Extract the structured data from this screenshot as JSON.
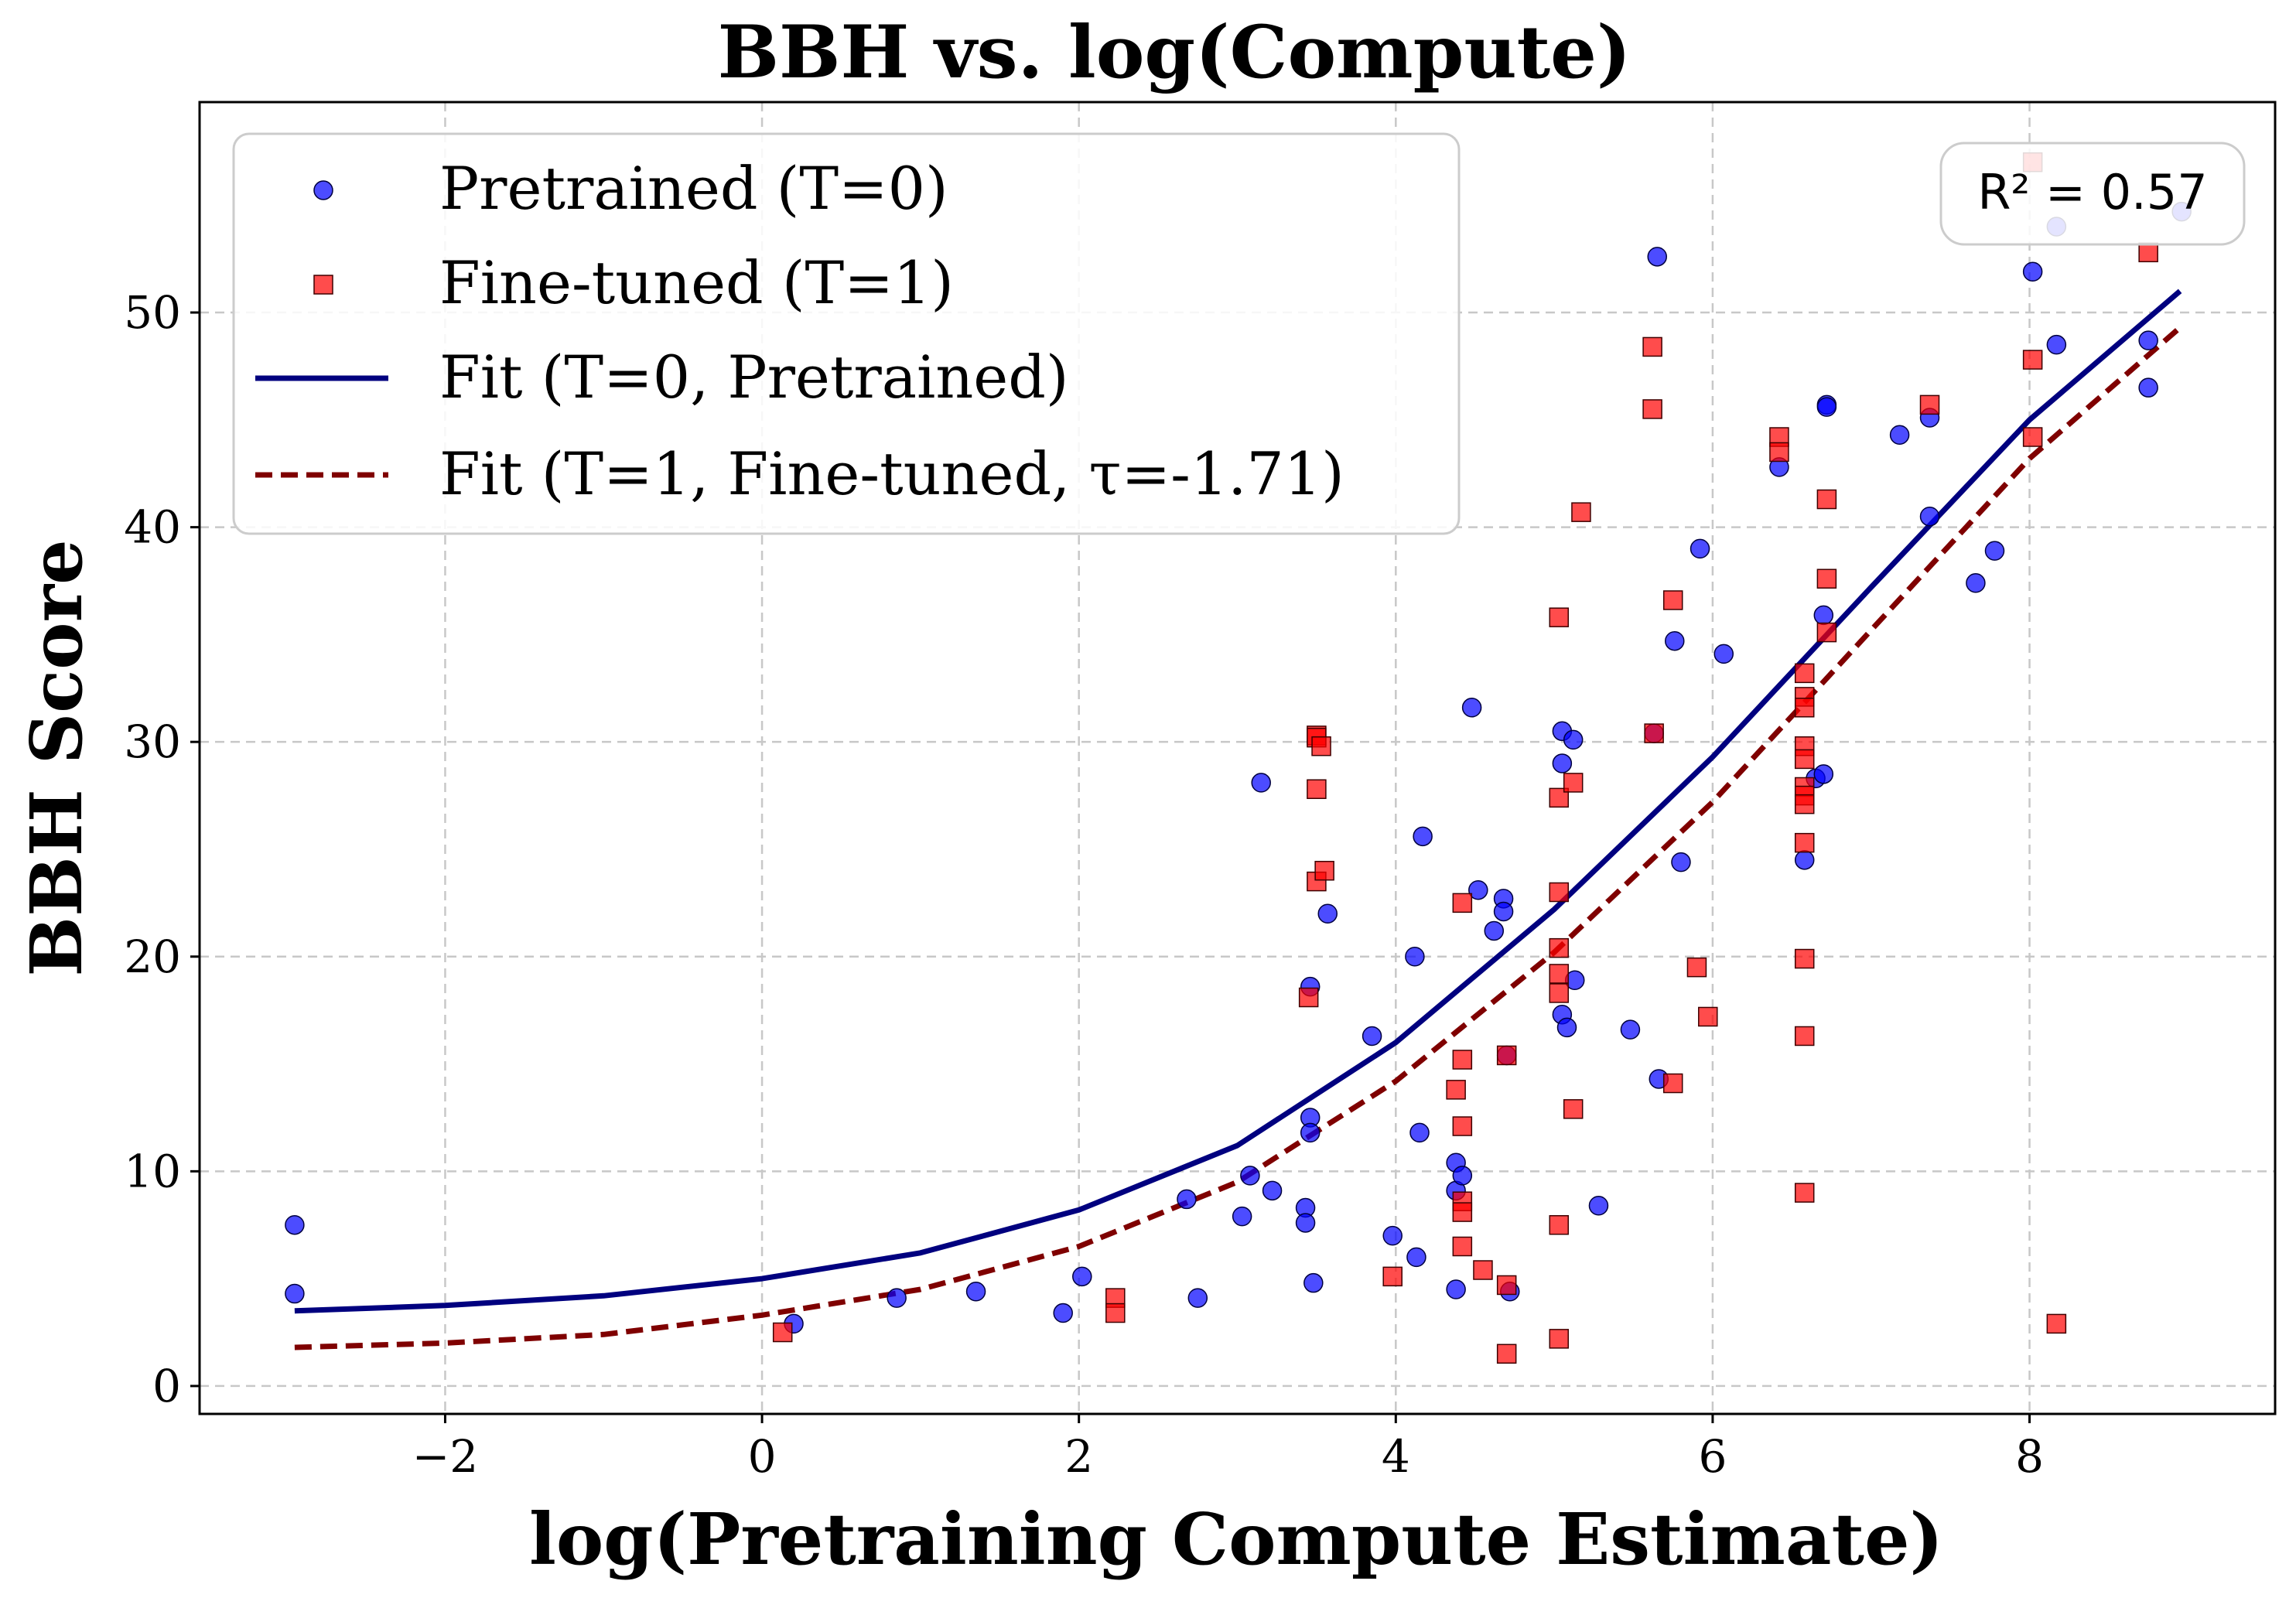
{
  "chart_data": {
    "type": "scatter",
    "title": "BBH vs. log(Compute)",
    "xlabel": "log(Pretraining Compute Estimate)",
    "ylabel": "BBH Score",
    "xlim": [
      -3.55,
      9.55
    ],
    "ylim": [
      -1.3,
      59.8
    ],
    "xticks": [
      -2,
      0,
      2,
      4,
      6,
      8
    ],
    "xtick_labels": [
      "−2",
      "0",
      "2",
      "4",
      "6",
      "8"
    ],
    "yticks": [
      0,
      10,
      20,
      30,
      40,
      50
    ],
    "ytick_labels": [
      "0",
      "10",
      "20",
      "30",
      "40",
      "50"
    ],
    "grid": true,
    "legend_placement": "upper-left",
    "annotation": {
      "label": "R² = 0.57",
      "r2": 0.57,
      "placement": "top-right"
    },
    "series": [
      {
        "name": "Pretrained (T=0)",
        "kind": "scatter",
        "marker": "circle",
        "color": "#0000ff",
        "points": [
          [
            -2.95,
            7.5
          ],
          [
            -2.95,
            4.3
          ],
          [
            0.2,
            2.9
          ],
          [
            0.85,
            4.1
          ],
          [
            1.35,
            4.4
          ],
          [
            1.9,
            3.4
          ],
          [
            2.02,
            5.1
          ],
          [
            2.68,
            8.7
          ],
          [
            2.75,
            4.1
          ],
          [
            3.03,
            7.9
          ],
          [
            3.08,
            9.8
          ],
          [
            3.15,
            28.1
          ],
          [
            3.22,
            9.1
          ],
          [
            3.43,
            8.3
          ],
          [
            3.43,
            7.6
          ],
          [
            3.46,
            18.6
          ],
          [
            3.46,
            12.5
          ],
          [
            3.46,
            11.8
          ],
          [
            3.48,
            4.8
          ],
          [
            3.57,
            22.0
          ],
          [
            3.85,
            16.3
          ],
          [
            3.98,
            7.0
          ],
          [
            4.12,
            20.0
          ],
          [
            4.13,
            6.0
          ],
          [
            4.15,
            11.8
          ],
          [
            4.17,
            25.6
          ],
          [
            4.38,
            10.4
          ],
          [
            4.38,
            9.1
          ],
          [
            4.38,
            4.5
          ],
          [
            4.42,
            9.8
          ],
          [
            4.48,
            31.6
          ],
          [
            4.52,
            23.1
          ],
          [
            4.62,
            21.2
          ],
          [
            4.68,
            22.7
          ],
          [
            4.68,
            22.1
          ],
          [
            4.7,
            15.4
          ],
          [
            4.72,
            4.4
          ],
          [
            5.05,
            30.5
          ],
          [
            5.05,
            29.0
          ],
          [
            5.05,
            17.3
          ],
          [
            5.08,
            16.7
          ],
          [
            5.12,
            30.1
          ],
          [
            5.13,
            18.9
          ],
          [
            5.28,
            8.4
          ],
          [
            5.48,
            16.6
          ],
          [
            5.63,
            30.4
          ],
          [
            5.65,
            52.6
          ],
          [
            5.66,
            14.3
          ],
          [
            5.76,
            34.7
          ],
          [
            5.8,
            24.4
          ],
          [
            5.92,
            39.0
          ],
          [
            6.07,
            34.1
          ],
          [
            6.42,
            42.8
          ],
          [
            6.58,
            24.5
          ],
          [
            6.65,
            28.3
          ],
          [
            6.7,
            28.5
          ],
          [
            6.7,
            35.9
          ],
          [
            6.72,
            45.7
          ],
          [
            6.72,
            45.6
          ],
          [
            7.18,
            44.3
          ],
          [
            7.37,
            45.1
          ],
          [
            7.37,
            40.5
          ],
          [
            7.66,
            37.4
          ],
          [
            7.78,
            38.9
          ],
          [
            8.02,
            51.9
          ],
          [
            8.17,
            54.0
          ],
          [
            8.17,
            48.5
          ],
          [
            8.75,
            48.7
          ],
          [
            8.75,
            46.5
          ],
          [
            8.96,
            54.7
          ]
        ]
      },
      {
        "name": "Fine-tuned (T=1)",
        "kind": "scatter",
        "marker": "square",
        "color": "#ff0000",
        "points": [
          [
            0.13,
            2.5
          ],
          [
            2.23,
            4.1
          ],
          [
            2.23,
            3.4
          ],
          [
            3.45,
            18.1
          ],
          [
            3.5,
            30.3
          ],
          [
            3.5,
            30.2
          ],
          [
            3.5,
            27.8
          ],
          [
            3.5,
            23.5
          ],
          [
            3.53,
            29.8
          ],
          [
            3.55,
            24.0
          ],
          [
            3.98,
            5.1
          ],
          [
            4.38,
            13.8
          ],
          [
            4.42,
            22.5
          ],
          [
            4.42,
            15.2
          ],
          [
            4.42,
            12.1
          ],
          [
            4.42,
            8.6
          ],
          [
            4.42,
            8.1
          ],
          [
            4.42,
            6.5
          ],
          [
            4.55,
            5.4
          ],
          [
            4.7,
            15.4
          ],
          [
            4.7,
            4.7
          ],
          [
            4.7,
            1.5
          ],
          [
            5.03,
            35.8
          ],
          [
            5.03,
            27.4
          ],
          [
            5.03,
            23.0
          ],
          [
            5.03,
            20.4
          ],
          [
            5.03,
            19.2
          ],
          [
            5.03,
            18.3
          ],
          [
            5.03,
            7.5
          ],
          [
            5.03,
            2.2
          ],
          [
            5.12,
            28.1
          ],
          [
            5.12,
            12.9
          ],
          [
            5.17,
            40.7
          ],
          [
            5.62,
            48.4
          ],
          [
            5.62,
            45.5
          ],
          [
            5.63,
            30.4
          ],
          [
            5.75,
            36.6
          ],
          [
            5.75,
            14.1
          ],
          [
            5.9,
            19.5
          ],
          [
            5.97,
            17.2
          ],
          [
            6.42,
            44.2
          ],
          [
            6.42,
            43.5
          ],
          [
            6.58,
            33.2
          ],
          [
            6.58,
            32.1
          ],
          [
            6.58,
            31.6
          ],
          [
            6.58,
            29.8
          ],
          [
            6.58,
            29.2
          ],
          [
            6.58,
            27.9
          ],
          [
            6.58,
            27.5
          ],
          [
            6.58,
            27.1
          ],
          [
            6.58,
            25.3
          ],
          [
            6.58,
            19.9
          ],
          [
            6.58,
            16.3
          ],
          [
            6.58,
            9.0
          ],
          [
            6.72,
            41.3
          ],
          [
            6.72,
            37.6
          ],
          [
            6.72,
            35.1
          ],
          [
            7.37,
            45.7
          ],
          [
            8.02,
            57.0
          ],
          [
            8.02,
            47.8
          ],
          [
            8.02,
            44.2
          ],
          [
            8.17,
            2.9
          ],
          [
            8.75,
            52.8
          ]
        ]
      },
      {
        "name": "Fit (T=0, Pretrained)",
        "kind": "line",
        "style": "solid",
        "color": "#00007f",
        "points": [
          [
            -2.95,
            3.5
          ],
          [
            -2.0,
            3.75
          ],
          [
            -1.0,
            4.2
          ],
          [
            0.0,
            5.0
          ],
          [
            1.0,
            6.2
          ],
          [
            2.0,
            8.2
          ],
          [
            3.0,
            11.2
          ],
          [
            4.0,
            16.0
          ],
          [
            5.0,
            22.2
          ],
          [
            6.0,
            29.3
          ],
          [
            7.0,
            37.2
          ],
          [
            8.0,
            45.0
          ],
          [
            8.95,
            51.0
          ]
        ]
      },
      {
        "name": "Fit (T=1, Fine-tuned, τ=-1.71)",
        "kind": "line",
        "style": "dashed",
        "color": "#7f0000",
        "points": [
          [
            -2.95,
            1.8
          ],
          [
            -2.0,
            2.0
          ],
          [
            -1.0,
            2.4
          ],
          [
            0.0,
            3.3
          ],
          [
            1.0,
            4.5
          ],
          [
            2.0,
            6.5
          ],
          [
            3.0,
            9.5
          ],
          [
            4.0,
            14.2
          ],
          [
            5.0,
            20.2
          ],
          [
            6.0,
            27.2
          ],
          [
            7.0,
            35.2
          ],
          [
            8.0,
            43.2
          ],
          [
            8.95,
            49.3
          ]
        ]
      }
    ]
  }
}
